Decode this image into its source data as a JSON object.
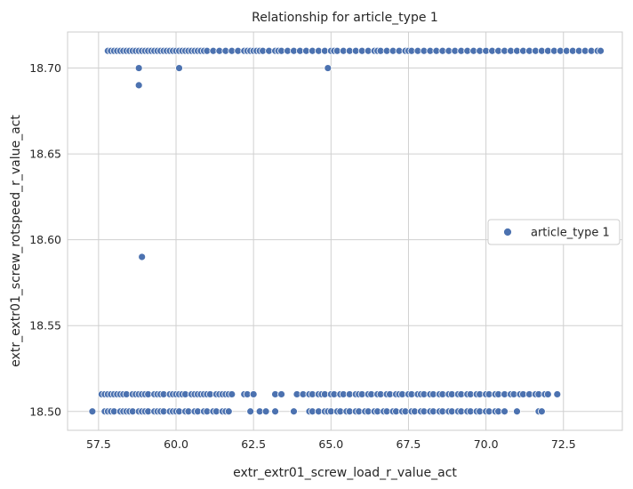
{
  "chart_data": {
    "type": "scatter",
    "title": "Relationship for article_type 1",
    "xlabel": "extr_extr01_screw_load_r_value_act",
    "ylabel": "extr_extr01_screw_rotspeed_r_value_act",
    "xlim": [
      56.5,
      74.4
    ],
    "ylim": [
      18.489,
      18.721
    ],
    "x_ticks": [
      57.5,
      60.0,
      62.5,
      65.0,
      67.5,
      70.0,
      72.5
    ],
    "x_tick_labels": [
      "57.5",
      "60.0",
      "62.5",
      "65.0",
      "67.5",
      "70.0",
      "72.5"
    ],
    "y_ticks": [
      18.5,
      18.55,
      18.6,
      18.65,
      18.7
    ],
    "y_tick_labels": [
      "18.50",
      "18.55",
      "18.60",
      "18.65",
      "18.70"
    ],
    "grid": true,
    "legend_position": "center-right",
    "colors": {
      "series": "#4c72b0",
      "grid": "#d0d0d0",
      "background": "#ffffff"
    },
    "series": [
      {
        "name": "article_type 1",
        "points": [
          [
            57.8,
            18.71
          ],
          [
            57.9,
            18.71
          ],
          [
            58.0,
            18.71
          ],
          [
            58.1,
            18.71
          ],
          [
            58.2,
            18.71
          ],
          [
            58.3,
            18.71
          ],
          [
            58.4,
            18.71
          ],
          [
            58.5,
            18.71
          ],
          [
            58.6,
            18.71
          ],
          [
            58.7,
            18.71
          ],
          [
            58.8,
            18.71
          ],
          [
            58.9,
            18.71
          ],
          [
            59.0,
            18.71
          ],
          [
            59.1,
            18.71
          ],
          [
            59.2,
            18.71
          ],
          [
            59.3,
            18.71
          ],
          [
            59.4,
            18.71
          ],
          [
            59.5,
            18.71
          ],
          [
            59.6,
            18.71
          ],
          [
            59.7,
            18.71
          ],
          [
            59.8,
            18.71
          ],
          [
            59.9,
            18.71
          ],
          [
            60.0,
            18.71
          ],
          [
            60.1,
            18.71
          ],
          [
            60.2,
            18.71
          ],
          [
            60.3,
            18.71
          ],
          [
            60.4,
            18.71
          ],
          [
            60.5,
            18.71
          ],
          [
            60.6,
            18.71
          ],
          [
            60.7,
            18.71
          ],
          [
            60.8,
            18.71
          ],
          [
            60.9,
            18.71
          ],
          [
            61.0,
            18.71
          ],
          [
            61.2,
            18.71
          ],
          [
            61.4,
            18.71
          ],
          [
            61.6,
            18.71
          ],
          [
            61.8,
            18.71
          ],
          [
            62.0,
            18.71
          ],
          [
            62.2,
            18.71
          ],
          [
            62.3,
            18.71
          ],
          [
            62.4,
            18.71
          ],
          [
            62.5,
            18.71
          ],
          [
            62.6,
            18.71
          ],
          [
            62.7,
            18.71
          ],
          [
            62.8,
            18.71
          ],
          [
            63.0,
            18.71
          ],
          [
            63.2,
            18.71
          ],
          [
            63.3,
            18.71
          ],
          [
            63.4,
            18.71
          ],
          [
            63.6,
            18.71
          ],
          [
            63.8,
            18.71
          ],
          [
            64.0,
            18.71
          ],
          [
            64.2,
            18.71
          ],
          [
            64.4,
            18.71
          ],
          [
            64.6,
            18.71
          ],
          [
            64.8,
            18.71
          ],
          [
            65.0,
            18.71
          ],
          [
            65.1,
            18.71
          ],
          [
            65.2,
            18.71
          ],
          [
            65.4,
            18.71
          ],
          [
            65.6,
            18.71
          ],
          [
            65.8,
            18.71
          ],
          [
            66.0,
            18.71
          ],
          [
            66.2,
            18.71
          ],
          [
            66.4,
            18.71
          ],
          [
            66.5,
            18.71
          ],
          [
            66.6,
            18.71
          ],
          [
            66.8,
            18.71
          ],
          [
            67.0,
            18.71
          ],
          [
            67.2,
            18.71
          ],
          [
            67.4,
            18.71
          ],
          [
            67.5,
            18.71
          ],
          [
            67.6,
            18.71
          ],
          [
            67.8,
            18.71
          ],
          [
            68.0,
            18.71
          ],
          [
            68.2,
            18.71
          ],
          [
            68.4,
            18.71
          ],
          [
            68.6,
            18.71
          ],
          [
            68.8,
            18.71
          ],
          [
            69.0,
            18.71
          ],
          [
            69.2,
            18.71
          ],
          [
            69.4,
            18.71
          ],
          [
            69.6,
            18.71
          ],
          [
            69.8,
            18.71
          ],
          [
            70.0,
            18.71
          ],
          [
            70.2,
            18.71
          ],
          [
            70.4,
            18.71
          ],
          [
            70.6,
            18.71
          ],
          [
            70.8,
            18.71
          ],
          [
            71.0,
            18.71
          ],
          [
            71.2,
            18.71
          ],
          [
            71.4,
            18.71
          ],
          [
            71.6,
            18.71
          ],
          [
            71.8,
            18.71
          ],
          [
            72.0,
            18.71
          ],
          [
            72.2,
            18.71
          ],
          [
            72.4,
            18.71
          ],
          [
            72.6,
            18.71
          ],
          [
            72.8,
            18.71
          ],
          [
            73.0,
            18.71
          ],
          [
            73.2,
            18.71
          ],
          [
            73.4,
            18.71
          ],
          [
            73.6,
            18.71
          ],
          [
            73.7,
            18.71
          ],
          [
            58.8,
            18.7
          ],
          [
            60.1,
            18.7
          ],
          [
            64.9,
            18.7
          ],
          [
            58.8,
            18.69
          ],
          [
            58.9,
            18.59
          ],
          [
            57.6,
            18.51
          ],
          [
            57.7,
            18.51
          ],
          [
            57.8,
            18.51
          ],
          [
            57.9,
            18.51
          ],
          [
            58.0,
            18.51
          ],
          [
            58.1,
            18.51
          ],
          [
            58.2,
            18.51
          ],
          [
            58.3,
            18.51
          ],
          [
            58.4,
            18.51
          ],
          [
            58.6,
            18.51
          ],
          [
            58.7,
            18.51
          ],
          [
            58.8,
            18.51
          ],
          [
            58.9,
            18.51
          ],
          [
            59.0,
            18.51
          ],
          [
            59.1,
            18.51
          ],
          [
            59.3,
            18.51
          ],
          [
            59.4,
            18.51
          ],
          [
            59.5,
            18.51
          ],
          [
            59.6,
            18.51
          ],
          [
            59.8,
            18.51
          ],
          [
            59.9,
            18.51
          ],
          [
            60.0,
            18.51
          ],
          [
            60.1,
            18.51
          ],
          [
            60.2,
            18.51
          ],
          [
            60.3,
            18.51
          ],
          [
            60.5,
            18.51
          ],
          [
            60.6,
            18.51
          ],
          [
            60.7,
            18.51
          ],
          [
            60.8,
            18.51
          ],
          [
            60.9,
            18.51
          ],
          [
            61.0,
            18.51
          ],
          [
            61.1,
            18.51
          ],
          [
            61.3,
            18.51
          ],
          [
            61.4,
            18.51
          ],
          [
            61.5,
            18.51
          ],
          [
            61.6,
            18.51
          ],
          [
            61.7,
            18.51
          ],
          [
            61.8,
            18.51
          ],
          [
            62.2,
            18.51
          ],
          [
            62.3,
            18.51
          ],
          [
            62.5,
            18.51
          ],
          [
            63.2,
            18.51
          ],
          [
            63.4,
            18.51
          ],
          [
            63.9,
            18.51
          ],
          [
            64.1,
            18.51
          ],
          [
            64.3,
            18.51
          ],
          [
            64.4,
            18.51
          ],
          [
            64.6,
            18.51
          ],
          [
            64.7,
            18.51
          ],
          [
            64.8,
            18.51
          ],
          [
            65.0,
            18.51
          ],
          [
            65.1,
            18.51
          ],
          [
            65.3,
            18.51
          ],
          [
            65.4,
            18.51
          ],
          [
            65.6,
            18.51
          ],
          [
            65.8,
            18.51
          ],
          [
            65.9,
            18.51
          ],
          [
            66.0,
            18.51
          ],
          [
            66.2,
            18.51
          ],
          [
            66.3,
            18.51
          ],
          [
            66.5,
            18.51
          ],
          [
            66.6,
            18.51
          ],
          [
            66.8,
            18.51
          ],
          [
            66.9,
            18.51
          ],
          [
            67.1,
            18.51
          ],
          [
            67.2,
            18.51
          ],
          [
            67.3,
            18.51
          ],
          [
            67.5,
            18.51
          ],
          [
            67.6,
            18.51
          ],
          [
            67.8,
            18.51
          ],
          [
            67.9,
            18.51
          ],
          [
            68.0,
            18.51
          ],
          [
            68.2,
            18.51
          ],
          [
            68.3,
            18.51
          ],
          [
            68.5,
            18.51
          ],
          [
            68.6,
            18.51
          ],
          [
            68.8,
            18.51
          ],
          [
            68.9,
            18.51
          ],
          [
            69.1,
            18.51
          ],
          [
            69.2,
            18.51
          ],
          [
            69.4,
            18.51
          ],
          [
            69.5,
            18.51
          ],
          [
            69.7,
            18.51
          ],
          [
            69.8,
            18.51
          ],
          [
            70.0,
            18.51
          ],
          [
            70.1,
            18.51
          ],
          [
            70.3,
            18.51
          ],
          [
            70.4,
            18.51
          ],
          [
            70.6,
            18.51
          ],
          [
            70.8,
            18.51
          ],
          [
            70.9,
            18.51
          ],
          [
            71.1,
            18.51
          ],
          [
            71.2,
            18.51
          ],
          [
            71.4,
            18.51
          ],
          [
            71.6,
            18.51
          ],
          [
            71.7,
            18.51
          ],
          [
            71.9,
            18.51
          ],
          [
            72.0,
            18.51
          ],
          [
            72.3,
            18.51
          ],
          [
            57.3,
            18.5
          ],
          [
            57.7,
            18.5
          ],
          [
            57.8,
            18.5
          ],
          [
            57.9,
            18.5
          ],
          [
            58.0,
            18.5
          ],
          [
            58.2,
            18.5
          ],
          [
            58.3,
            18.5
          ],
          [
            58.4,
            18.5
          ],
          [
            58.5,
            18.5
          ],
          [
            58.6,
            18.5
          ],
          [
            58.8,
            18.5
          ],
          [
            58.9,
            18.5
          ],
          [
            59.0,
            18.5
          ],
          [
            59.1,
            18.5
          ],
          [
            59.3,
            18.5
          ],
          [
            59.4,
            18.5
          ],
          [
            59.5,
            18.5
          ],
          [
            59.6,
            18.5
          ],
          [
            59.8,
            18.5
          ],
          [
            59.9,
            18.5
          ],
          [
            60.0,
            18.5
          ],
          [
            60.1,
            18.5
          ],
          [
            60.3,
            18.5
          ],
          [
            60.4,
            18.5
          ],
          [
            60.6,
            18.5
          ],
          [
            60.7,
            18.5
          ],
          [
            60.9,
            18.5
          ],
          [
            61.0,
            18.5
          ],
          [
            61.2,
            18.5
          ],
          [
            61.3,
            18.5
          ],
          [
            61.5,
            18.5
          ],
          [
            61.6,
            18.5
          ],
          [
            61.7,
            18.5
          ],
          [
            62.4,
            18.5
          ],
          [
            62.7,
            18.5
          ],
          [
            62.9,
            18.5
          ],
          [
            63.2,
            18.5
          ],
          [
            63.8,
            18.5
          ],
          [
            64.3,
            18.5
          ],
          [
            64.4,
            18.5
          ],
          [
            64.6,
            18.5
          ],
          [
            64.8,
            18.5
          ],
          [
            64.9,
            18.5
          ],
          [
            65.0,
            18.5
          ],
          [
            65.2,
            18.5
          ],
          [
            65.3,
            18.5
          ],
          [
            65.5,
            18.5
          ],
          [
            65.6,
            18.5
          ],
          [
            65.8,
            18.5
          ],
          [
            65.9,
            18.5
          ],
          [
            66.1,
            18.5
          ],
          [
            66.2,
            18.5
          ],
          [
            66.4,
            18.5
          ],
          [
            66.5,
            18.5
          ],
          [
            66.7,
            18.5
          ],
          [
            66.8,
            18.5
          ],
          [
            67.0,
            18.5
          ],
          [
            67.1,
            18.5
          ],
          [
            67.3,
            18.5
          ],
          [
            67.4,
            18.5
          ],
          [
            67.6,
            18.5
          ],
          [
            67.7,
            18.5
          ],
          [
            67.9,
            18.5
          ],
          [
            68.0,
            18.5
          ],
          [
            68.2,
            18.5
          ],
          [
            68.3,
            18.5
          ],
          [
            68.5,
            18.5
          ],
          [
            68.6,
            18.5
          ],
          [
            68.8,
            18.5
          ],
          [
            68.9,
            18.5
          ],
          [
            69.1,
            18.5
          ],
          [
            69.2,
            18.5
          ],
          [
            69.4,
            18.5
          ],
          [
            69.5,
            18.5
          ],
          [
            69.7,
            18.5
          ],
          [
            69.8,
            18.5
          ],
          [
            70.0,
            18.5
          ],
          [
            70.1,
            18.5
          ],
          [
            70.3,
            18.5
          ],
          [
            70.4,
            18.5
          ],
          [
            70.6,
            18.5
          ],
          [
            71.0,
            18.5
          ],
          [
            71.7,
            18.5
          ],
          [
            71.8,
            18.5
          ]
        ]
      }
    ]
  }
}
